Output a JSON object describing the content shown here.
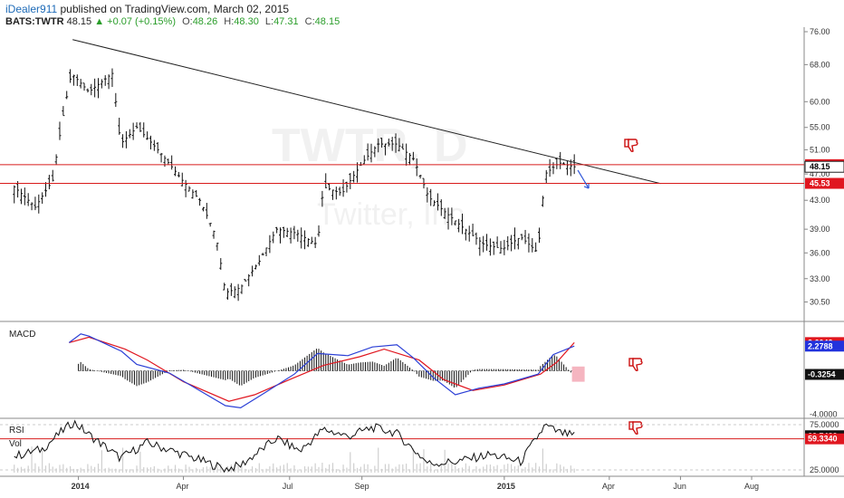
{
  "header": {
    "author": "iDealer911",
    "published_text": " published on TradingView.com, March 02, 2015",
    "symbol": "BATS:TWTR",
    "last": "48.15",
    "change": "▲ +0.07 (+0.15%)",
    "open_label": "O:",
    "open": "48.26",
    "high_label": "H:",
    "high": "48.30",
    "low_label": "L:",
    "low": "47.31",
    "close_label": "C:",
    "close": "48.15"
  },
  "colors": {
    "price_line": "#d81b1b",
    "macd_line": "#2b3fd6",
    "signal_line": "#e0161f",
    "label_red": "#e0161f",
    "label_blue": "#2233dd",
    "grid": "#bbbbbb",
    "arrow": "#2f57d9",
    "hand": "#cc1111"
  },
  "watermark": {
    "symbol": "TWTR, D",
    "name": "Twitter, Inc"
  },
  "icons": [
    "thumbs-down-icon",
    "arrow-down-right-icon"
  ],
  "chart_data": [
    {
      "type": "candlestick",
      "title": "",
      "scale": "log",
      "ylim": [
        29.0,
        76.0
      ],
      "y_ticks": [
        "76.00",
        "68.00",
        "60.00",
        "55.00",
        "51.00",
        "47.00",
        "43.00",
        "39.00",
        "36.00",
        "33.00",
        "30.50"
      ],
      "x_ticks": [
        "2014",
        "Apr",
        "Jul",
        "Sep",
        "2015",
        "Apr",
        "Jun",
        "Aug"
      ],
      "xlim": [
        "2013-11-01",
        "2015-09-15"
      ],
      "series": [
        {
          "name": "BATS:TWTR",
          "x": [
            "2013-11-07",
            "2013-11-25",
            "2013-12-10",
            "2013-12-26",
            "2014-01-10",
            "2014-01-30",
            "2014-02-06",
            "2014-02-20",
            "2014-03-10",
            "2014-03-31",
            "2014-04-15",
            "2014-04-29",
            "2014-05-07",
            "2014-05-20",
            "2014-06-05",
            "2014-06-20",
            "2014-07-07",
            "2014-07-25",
            "2014-07-30",
            "2014-08-15",
            "2014-09-02",
            "2014-09-15",
            "2014-10-01",
            "2014-10-15",
            "2014-10-28",
            "2014-11-10",
            "2014-11-28",
            "2014-12-15",
            "2014-12-31",
            "2015-01-15",
            "2015-01-30",
            "2015-02-05",
            "2015-02-17",
            "2015-03-02"
          ],
          "values": [
            45.0,
            42.0,
            46.0,
            66.0,
            62.0,
            66.0,
            52.0,
            55.0,
            51.0,
            46.0,
            43.0,
            38.0,
            31.5,
            32.0,
            35.0,
            39.0,
            38.5,
            37.0,
            45.0,
            44.0,
            49.0,
            52.0,
            52.0,
            49.5,
            43.5,
            41.5,
            39.0,
            37.0,
            36.5,
            38.0,
            36.0,
            47.0,
            48.8,
            48.15
          ]
        }
      ],
      "trendline": {
        "from": [
          "2013-12-27",
          74.0
        ],
        "to": [
          "2015-05-15",
          45.5
        ]
      },
      "horizontal_lines": [
        48.5,
        45.53
      ],
      "price_labels": [
        "48.50",
        "48.15",
        "45.53"
      ]
    },
    {
      "type": "line",
      "title": "MACD",
      "ylim": [
        -4.2,
        4.3
      ],
      "y_ticks": [
        "-4.0000"
      ],
      "series": [
        {
          "name": "",
          "x": [
            "2013-12-24",
            "2014-01-03",
            "2014-01-10",
            "2014-02-07",
            "2014-02-20",
            "2014-03-20",
            "2014-04-10",
            "2014-05-07",
            "2014-05-20",
            "2014-06-10",
            "2014-07-05",
            "2014-07-25",
            "2014-08-20",
            "2014-09-10",
            "2014-10-01",
            "2014-10-15",
            "2014-11-01",
            "2014-11-20",
            "2014-12-10",
            "2015-01-01",
            "2015-01-30",
            "2015-02-12",
            "2015-03-02"
          ],
          "values": [
            2.6,
            3.4,
            3.2,
            1.8,
            0.6,
            -0.2,
            -1.5,
            -3.2,
            -3.4,
            -2.0,
            -0.3,
            1.6,
            1.4,
            2.2,
            2.4,
            1.2,
            -0.6,
            -2.2,
            -1.6,
            -1.2,
            -0.3,
            1.5,
            2.28
          ]
        },
        {
          "name": "",
          "x": [
            "2013-12-24",
            "2014-01-10",
            "2014-02-10",
            "2014-03-01",
            "2014-04-01",
            "2014-05-10",
            "2014-06-01",
            "2014-07-01",
            "2014-07-30",
            "2014-08-30",
            "2014-09-20",
            "2014-10-20",
            "2014-11-10",
            "2014-12-05",
            "2015-01-01",
            "2015-02-01",
            "2015-02-15",
            "2015-03-02"
          ],
          "values": [
            2.6,
            3.1,
            2.0,
            1.0,
            -1.0,
            -2.8,
            -2.2,
            -0.8,
            0.5,
            1.3,
            2.0,
            1.0,
            -0.8,
            -1.8,
            -1.3,
            -0.3,
            0.8,
            2.6
          ]
        }
      ],
      "histogram_last": -0.3254,
      "value_labels": [
        "2.6042",
        "2.2788",
        "-0.3254"
      ]
    },
    {
      "type": "line",
      "title": "RSI",
      "ylim": [
        22.0,
        80.0
      ],
      "y_ticks": [
        "75.0000",
        "25.0000"
      ],
      "reference_line": 59.334,
      "series": [
        {
          "name": "RSI",
          "x": [
            "2013-11-07",
            "2013-12-01",
            "2013-12-20",
            "2013-12-28",
            "2014-01-10",
            "2014-02-06",
            "2014-03-01",
            "2014-04-01",
            "2014-05-07",
            "2014-05-20",
            "2014-06-20",
            "2014-07-10",
            "2014-07-30",
            "2014-08-20",
            "2014-09-10",
            "2014-09-30",
            "2014-10-28",
            "2014-11-20",
            "2014-12-20",
            "2015-01-15",
            "2015-02-05",
            "2015-02-17",
            "2015-03-02"
          ],
          "values": [
            40,
            48,
            70,
            78,
            64,
            38,
            55,
            42,
            26,
            30,
            60,
            46,
            70,
            62,
            72,
            66,
            32,
            34,
            42,
            34,
            74,
            66,
            62.75
          ]
        }
      ],
      "value_labels": [
        "62.7482",
        "59.3340"
      ]
    }
  ],
  "lower_pane_labels": {
    "rsi": "RSI",
    "vol": "Vol"
  }
}
